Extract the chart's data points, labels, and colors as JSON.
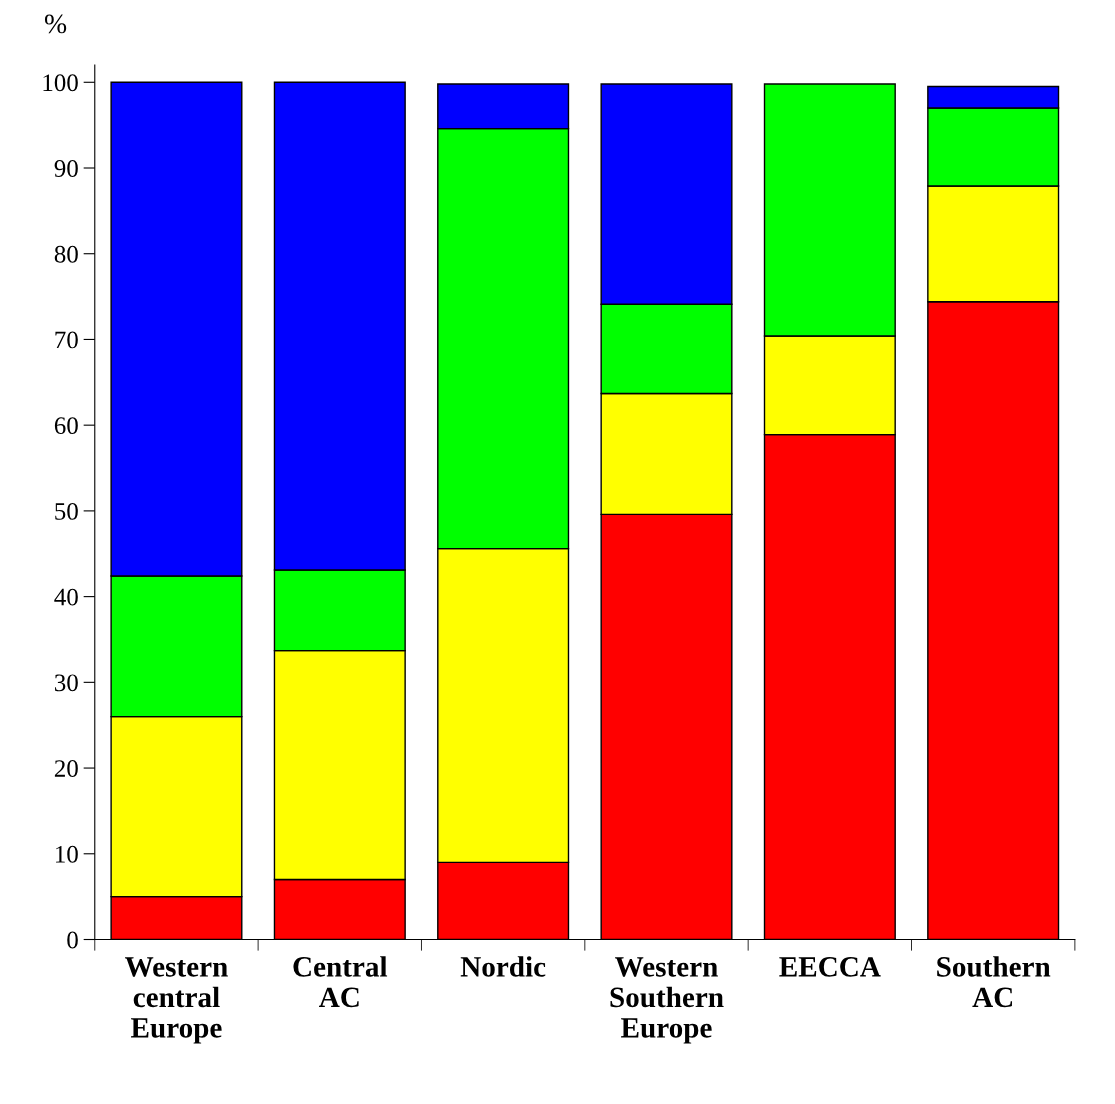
{
  "chart_data": {
    "type": "bar",
    "stacked": true,
    "ylabel": "%",
    "categories": [
      "Western central Europe",
      "Central AC",
      "Nordic",
      "Western Southern Europe",
      "EECCA",
      "Southern AC"
    ],
    "series": [
      {
        "color": "#ff0000",
        "values": [
          5,
          7,
          9,
          49.6,
          58.9,
          74.4
        ]
      },
      {
        "color": "#ffff00",
        "values": [
          21,
          26.7,
          36.6,
          14.1,
          11.5,
          13.5
        ]
      },
      {
        "color": "#00ff00",
        "values": [
          16.4,
          9.4,
          49,
          10.4,
          29.4,
          9.1
        ]
      },
      {
        "color": "#0000ff",
        "values": [
          57.6,
          56.9,
          5.2,
          25.7,
          null,
          2.5
        ]
      }
    ],
    "ylim": [
      0,
      102
    ],
    "yticks": [
      0,
      10,
      20,
      30,
      40,
      50,
      60,
      70,
      80,
      90,
      100
    ],
    "grid": false,
    "legend": false
  }
}
